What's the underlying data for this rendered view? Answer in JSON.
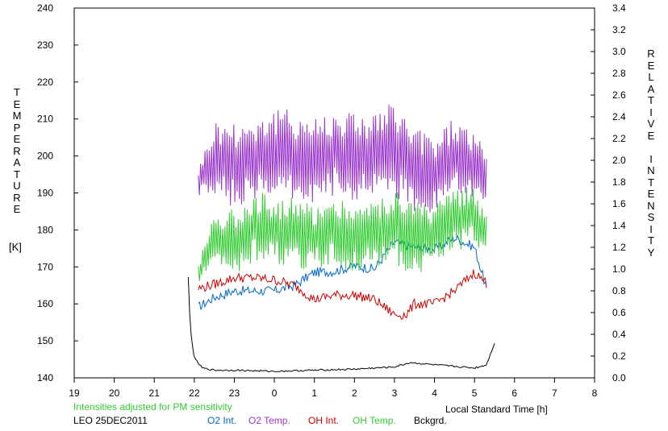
{
  "chart_data": {
    "type": "line",
    "title": "",
    "station_date": "LEO 25DEC2011",
    "note": "Intensities adjusted for PM sensitivity",
    "xlabel": "Local Standard Time [h]",
    "ylabel_left": "TEMPERATURE",
    "ylabel_left_unit": "[K]",
    "ylabel_right": "RELATIVE INTENSITY",
    "x_ticks": [
      "19",
      "20",
      "21",
      "22",
      "23",
      "0",
      "1",
      "2",
      "3",
      "4",
      "5",
      "6",
      "7",
      "8"
    ],
    "xlim": [
      19,
      8
    ],
    "ylim_left": [
      140,
      240
    ],
    "yticks_left": [
      "140",
      "150",
      "160",
      "170",
      "180",
      "190",
      "200",
      "210",
      "220",
      "230",
      "240"
    ],
    "ylim_right": [
      0.0,
      3.4
    ],
    "yticks_right": [
      "0.0",
      "0.2",
      "0.4",
      "0.6",
      "0.8",
      "1.0",
      "1.2",
      "1.4",
      "1.6",
      "1.8",
      "2.0",
      "2.2",
      "2.4",
      "2.6",
      "2.8",
      "3.0",
      "3.2",
      "3.4"
    ],
    "grid": false,
    "legend_position": "bottom",
    "series": [
      {
        "name": "O2 Int.",
        "axis": "right",
        "color": "#0066cc",
        "x": [
          22.1,
          22.5,
          23.0,
          23.5,
          24.0,
          24.5,
          25.0,
          25.5,
          26.0,
          26.5,
          27.0,
          27.5,
          28.0,
          28.5,
          29.0,
          29.3
        ],
        "y": [
          0.65,
          0.74,
          0.8,
          0.8,
          0.8,
          0.85,
          0.97,
          0.98,
          1.03,
          1.0,
          1.25,
          1.2,
          1.18,
          1.29,
          1.2,
          0.82
        ]
      },
      {
        "name": "O2 Temp.",
        "axis": "left",
        "color": "#9933cc",
        "x": [
          22.1,
          22.5,
          23.0,
          23.5,
          24.0,
          24.5,
          25.0,
          25.5,
          26.0,
          26.5,
          27.0,
          27.5,
          28.0,
          28.5,
          29.0,
          29.3
        ],
        "y": [
          193,
          199,
          198,
          199,
          201,
          200,
          199,
          201,
          200,
          200,
          202,
          196,
          195,
          200,
          197,
          192
        ],
        "spread": [
          4,
          11,
          12,
          12,
          12,
          13,
          12,
          12,
          13,
          12,
          13,
          12,
          11,
          11,
          10,
          9
        ]
      },
      {
        "name": "OH Int.",
        "axis": "right",
        "color": "#cc0000",
        "x": [
          22.1,
          22.5,
          23.0,
          23.5,
          24.0,
          24.5,
          25.0,
          25.5,
          26.0,
          26.5,
          27.0,
          27.3,
          27.5,
          28.0,
          28.5,
          29.0,
          29.3
        ],
        "y": [
          0.82,
          0.86,
          0.92,
          0.92,
          0.9,
          0.85,
          0.72,
          0.76,
          0.76,
          0.72,
          0.58,
          0.58,
          0.68,
          0.68,
          0.8,
          0.97,
          0.87
        ]
      },
      {
        "name": "OH Temp.",
        "axis": "left",
        "color": "#33cc33",
        "x": [
          22.1,
          22.5,
          23.0,
          23.5,
          24.0,
          24.5,
          25.0,
          25.5,
          26.0,
          26.5,
          27.0,
          27.5,
          28.0,
          28.5,
          29.0,
          29.3
        ],
        "y": [
          168,
          178,
          177,
          181,
          180,
          179,
          178,
          180,
          178,
          179,
          181,
          178,
          178,
          183,
          184,
          178
        ],
        "spread": [
          3,
          7,
          9,
          10,
          9,
          10,
          9,
          9,
          10,
          9,
          11,
          10,
          9,
          9,
          8,
          6
        ]
      },
      {
        "name": "Bckgrd.",
        "axis": "right",
        "color": "#000000",
        "x": [
          21.85,
          21.9,
          22.0,
          22.2,
          22.5,
          23.0,
          24.0,
          25.0,
          26.0,
          27.0,
          27.4,
          28.0,
          29.0,
          29.3,
          29.5
        ],
        "y": [
          0.92,
          0.45,
          0.18,
          0.09,
          0.07,
          0.07,
          0.06,
          0.07,
          0.08,
          0.1,
          0.14,
          0.12,
          0.09,
          0.12,
          0.32
        ]
      }
    ]
  }
}
